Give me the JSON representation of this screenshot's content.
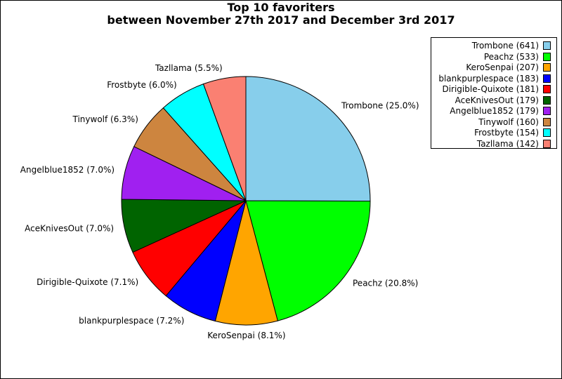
{
  "chart_data": {
    "type": "pie",
    "title": "Top 10 favoriters",
    "subtitle": "between November 27th 2017 and December 3rd 2017",
    "legend_position": "top-right",
    "slices": [
      {
        "label": "Trombone",
        "value": 641,
        "pct_label": "Trombone (25.0%)",
        "legend_label": "Trombone (641)",
        "color": "#87ceeb"
      },
      {
        "label": "Peachz",
        "value": 533,
        "pct_label": "Peachz (20.8%)",
        "legend_label": "Peachz (533)",
        "color": "#00ff00"
      },
      {
        "label": "KeroSenpai",
        "value": 207,
        "pct_label": "KeroSenpai (8.1%)",
        "legend_label": "KeroSenpai (207)",
        "color": "#ffa500"
      },
      {
        "label": "blankpurplespace",
        "value": 183,
        "pct_label": "blankpurplespace (7.2%)",
        "legend_label": "blankpurplespace (183)",
        "color": "#0000ff"
      },
      {
        "label": "Dirigible-Quixote",
        "value": 181,
        "pct_label": "Dirigible-Quixote (7.1%)",
        "legend_label": "Dirigible-Quixote (181)",
        "color": "#ff0000"
      },
      {
        "label": "AceKnivesOut",
        "value": 179,
        "pct_label": "AceKnivesOut (7.0%)",
        "legend_label": "AceKnivesOut (179)",
        "color": "#006400"
      },
      {
        "label": "Angelblue1852",
        "value": 179,
        "pct_label": "Angelblue1852 (7.0%)",
        "legend_label": "Angelblue1852 (179)",
        "color": "#a020f0"
      },
      {
        "label": "Tinywolf",
        "value": 160,
        "pct_label": "Tinywolf (6.3%)",
        "legend_label": "Tinywolf (160)",
        "color": "#cd853f"
      },
      {
        "label": "Frostbyte",
        "value": 154,
        "pct_label": "Frostbyte (6.0%)",
        "legend_label": "Frostbyte (154)",
        "color": "#00ffff"
      },
      {
        "label": "Tazllama",
        "value": 142,
        "pct_label": "Tazllama (5.5%)",
        "legend_label": "Tazllama (142)",
        "color": "#fa8072"
      }
    ]
  }
}
